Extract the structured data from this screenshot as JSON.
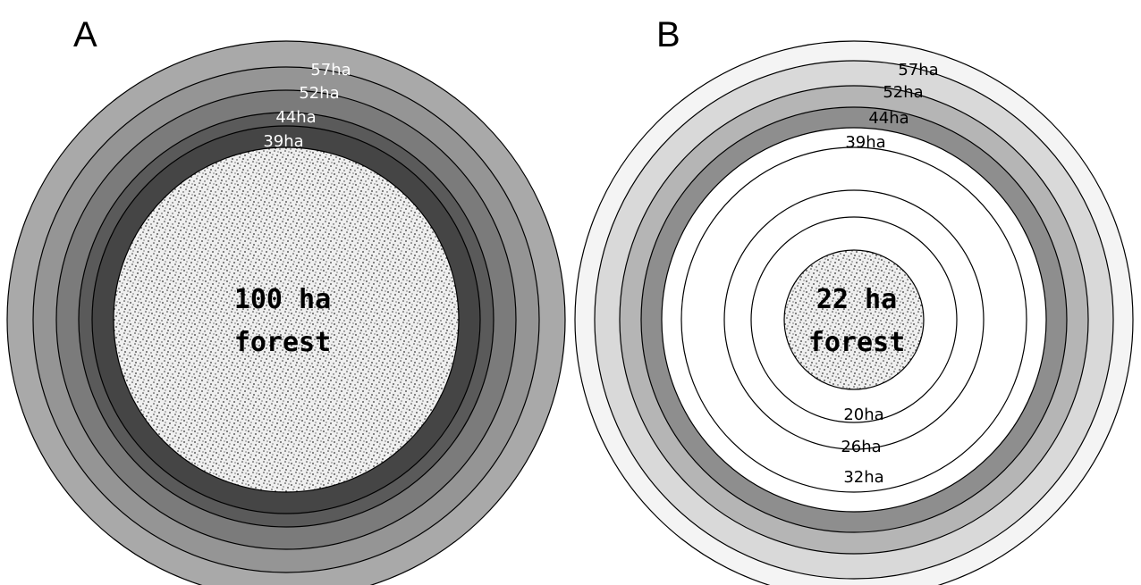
{
  "panels": [
    {
      "label": "A",
      "forest": {
        "line1": "100 ha",
        "line2": "forest",
        "fill": "#e8e8e8"
      },
      "rings": [
        {
          "label": "57ha",
          "fill": "#a9a9a9",
          "text_color": "#ffffff"
        },
        {
          "label": "52ha",
          "fill": "#959595",
          "text_color": "#ffffff"
        },
        {
          "label": "44ha",
          "fill": "#7b7b7b",
          "text_color": "#ffffff"
        },
        {
          "label": "39ha",
          "fill": "#5a5a5a",
          "text_color": "#ffffff"
        },
        {
          "label": "",
          "fill": "#454545",
          "text_color": "#ffffff"
        }
      ]
    },
    {
      "label": "B",
      "forest": {
        "line1": "22 ha",
        "line2": "forest",
        "fill": "#e8e8e8"
      },
      "rings": [
        {
          "label": "57ha",
          "fill": "#f4f4f4",
          "text_color": "#000000"
        },
        {
          "label": "52ha",
          "fill": "#d9d9d9",
          "text_color": "#000000"
        },
        {
          "label": "44ha",
          "fill": "#b5b5b5",
          "text_color": "#000000"
        },
        {
          "label": "39ha",
          "fill": "#8e8e8e",
          "text_color": "#000000"
        },
        {
          "label": "",
          "fill": "#ffffff",
          "text_color": "#000000"
        },
        {
          "label": "32ha",
          "fill": "#ffffff",
          "text_color": "#000000"
        },
        {
          "label": "26ha",
          "fill": "#ffffff",
          "text_color": "#000000"
        },
        {
          "label": "20ha",
          "fill": "#ffffff",
          "text_color": "#000000"
        }
      ]
    }
  ]
}
